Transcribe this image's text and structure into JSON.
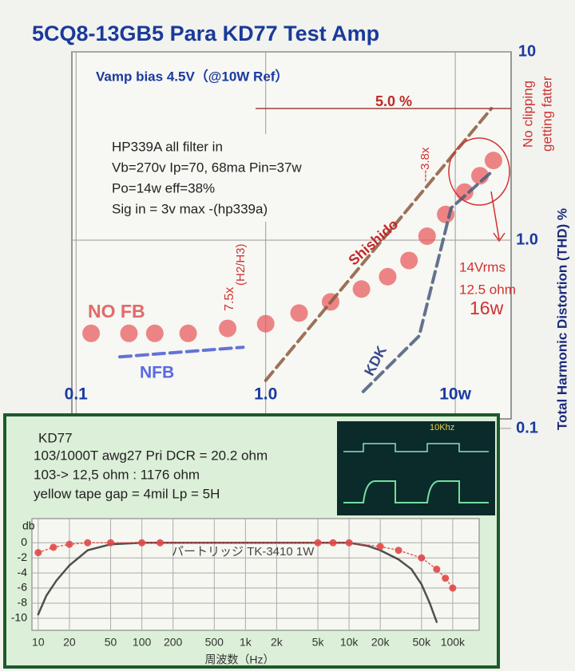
{
  "chart_data": [
    {
      "type": "line",
      "title": "5CQ8-13GB5 Para KD77 Test Amp",
      "subtitle": "Vamp bias 4.5V（@10W Ref）",
      "y_label": "Total Harmonic Distortion (THD) %",
      "xscale": "log",
      "yscale": "log",
      "xlim": [
        0.095,
        19.7
      ],
      "ylim": [
        0.1,
        10
      ],
      "xticks": [
        0.1,
        {
          "value": 1,
          "label": "1.0"
        },
        {
          "value": 10,
          "label": "10w"
        }
      ],
      "yticks": [
        0.1,
        {
          "value": 1,
          "label": "1.0"
        },
        10
      ],
      "grid": true,
      "series": [
        {
          "name": "NO FB",
          "color": "#e8575a",
          "style": "dots",
          "x": [
            0.12,
            0.19,
            0.26,
            0.39,
            0.63,
            1.0,
            1.5,
            2.2,
            3.2,
            4.4,
            5.7,
            7.1,
            8.9,
            11.2,
            13.5,
            15.9
          ],
          "values": [
            0.32,
            0.32,
            0.32,
            0.32,
            0.34,
            0.36,
            0.41,
            0.47,
            0.55,
            0.64,
            0.78,
            1.05,
            1.37,
            1.8,
            2.2,
            2.65
          ]
        },
        {
          "name": "Shishido",
          "color": "#8b5a3c",
          "style": "dashed",
          "x": [
            1.0,
            15.5
          ],
          "values": [
            0.18,
            5.0
          ]
        },
        {
          "name": "KDK",
          "color": "#4a5a7a",
          "style": "dashed",
          "x": [
            3.27,
            6.45,
            9.5,
            15.5
          ],
          "values": [
            0.157,
            0.31,
            1.48,
            2.3
          ]
        },
        {
          "name": "NFB",
          "color": "#4a5ad0",
          "style": "dashed",
          "x": [
            0.17,
            0.76
          ],
          "values": [
            0.24,
            0.27
          ]
        }
      ],
      "annotations": [
        "5.0 %",
        "HP339A all filter in",
        "Vb=270v  Ip=70, 68ma  Pin=37w",
        "Po=14w  eff=38%",
        "Sig in = 3v max -(hp339a)",
        "7.5x",
        "(H2/H3)",
        "---3.8x",
        "No clipping",
        "getting fatter",
        "14Vrms",
        "12.5 ohm",
        "16w"
      ]
    },
    {
      "type": "line",
      "title": "KD77",
      "notes": [
        "103/1000T awg27   Pri DCR = 20.2 ohm",
        "103-> 12,5 ohm : 1176 ohm",
        "yellow tape gap = 4mil  Lp = 5H"
      ],
      "x_label": "周波数（Hz）",
      "y_label": "db",
      "xscale": "log",
      "yscale": "linear",
      "xlim": [
        8.7,
        180000
      ],
      "ylim": [
        -11.6,
        3.2
      ],
      "xticks": [
        10,
        20,
        50,
        100,
        200,
        500,
        {
          "value": 1000,
          "label": "1k"
        },
        {
          "value": 2000,
          "label": "2k"
        },
        {
          "value": 5000,
          "label": "5k"
        },
        {
          "value": 10000,
          "label": "10k"
        },
        {
          "value": 20000,
          "label": "20k"
        },
        {
          "value": 50000,
          "label": "50k"
        },
        {
          "value": 100000,
          "label": "100k"
        }
      ],
      "yticks": [
        0,
        -2,
        -4,
        -6,
        -8,
        -10
      ],
      "grid": true,
      "series": [
        {
          "name": "パートリッジ TK-3410  1W",
          "color": "#333333",
          "style": "solid",
          "x": [
            10,
            12,
            15,
            20,
            30,
            50,
            100,
            10000,
            15000,
            20000,
            30000,
            40000,
            50000,
            60000,
            70000
          ],
          "values": [
            -9.5,
            -7,
            -5,
            -3,
            -1,
            -0.2,
            0,
            0,
            -0.4,
            -1,
            -2.2,
            -3.5,
            -5.5,
            -8,
            -10.5
          ]
        },
        {
          "color": "#e04848",
          "style": "dots-line",
          "x": [
            10,
            14,
            20,
            30,
            50,
            100,
            150,
            5000,
            7000,
            10000,
            20000,
            30000,
            50000,
            70000,
            85000,
            100000
          ],
          "values": [
            -1.3,
            -0.6,
            -0.2,
            0,
            0,
            0,
            0,
            0,
            0,
            0,
            -0.5,
            -1,
            -2,
            -3.5,
            -4.7,
            -6
          ]
        }
      ],
      "annotations": [
        "10Khz"
      ]
    }
  ]
}
